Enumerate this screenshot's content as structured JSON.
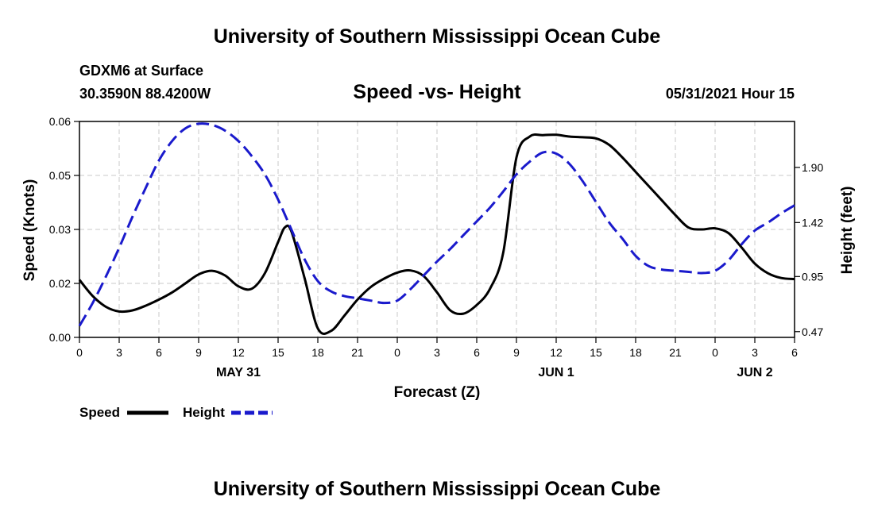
{
  "header": {
    "title": "University of Southern Mississippi Ocean Cube",
    "station": "GDXM6 at Surface",
    "coords": "30.3590N  88.4200W",
    "chart_title": "Speed -vs- Height",
    "datetime": "05/31/2021 Hour 15"
  },
  "footer": {
    "title": "University of Southern Mississippi Ocean Cube"
  },
  "legend": {
    "speed_label": "Speed",
    "height_label": "Height"
  },
  "colors": {
    "speed": "#000000",
    "height": "#1a1acc",
    "grid": "#c8c8c8"
  },
  "chart_data": {
    "type": "line",
    "title": "Speed -vs- Height",
    "xlabel": "Forecast (Z)",
    "ylabel_left": "Speed (Knots)",
    "ylabel_right": "Height (feet)",
    "x_unit": "hours since 2021-05-31 00Z",
    "xlim": [
      0,
      54
    ],
    "x_tick_values": [
      0,
      3,
      6,
      9,
      12,
      15,
      18,
      21,
      24,
      27,
      30,
      33,
      36,
      39,
      42,
      45,
      48,
      51,
      54
    ],
    "x_tick_labels": [
      "0",
      "3",
      "6",
      "9",
      "12",
      "15",
      "18",
      "21",
      "0",
      "3",
      "6",
      "9",
      "12",
      "15",
      "18",
      "21",
      "0",
      "3",
      "6"
    ],
    "date_labels": [
      {
        "x": 12,
        "label": "MAY 31"
      },
      {
        "x": 36,
        "label": "JUN 1"
      },
      {
        "x": 51,
        "label": "JUN 2"
      }
    ],
    "y_left": {
      "ylim": [
        0,
        0.06
      ],
      "ticks": [
        0.0,
        0.015,
        0.03,
        0.045,
        0.06
      ],
      "tick_labels": [
        "0.00",
        "0.02",
        "0.03",
        "0.05",
        "0.06"
      ]
    },
    "y_right": {
      "ylim": [
        0.42,
        2.3
      ],
      "ticks": [
        0.47,
        0.95,
        1.42,
        1.9
      ],
      "tick_labels": [
        "0.47",
        "0.95",
        "1.42",
        "1.90"
      ]
    },
    "grid": true,
    "series": [
      {
        "name": "Speed",
        "axis": "left",
        "style": "solid",
        "x": [
          0,
          1,
          2,
          3,
          4,
          5,
          6,
          7,
          8,
          9,
          10,
          11,
          12,
          13,
          14,
          15,
          15.5,
          16,
          17,
          18,
          19,
          20,
          21,
          22,
          23,
          24,
          25,
          26,
          27,
          28,
          29,
          30,
          31,
          32,
          33,
          34,
          35,
          36,
          37,
          38,
          39,
          40,
          41,
          42,
          43,
          44,
          45,
          46,
          47,
          48,
          49,
          50,
          51,
          52,
          53,
          54
        ],
        "values": [
          0.016,
          0.0115,
          0.0085,
          0.0072,
          0.0075,
          0.0088,
          0.0105,
          0.0125,
          0.015,
          0.0175,
          0.0185,
          0.0172,
          0.0142,
          0.0135,
          0.0178,
          0.0265,
          0.0305,
          0.0295,
          0.0165,
          0.0025,
          0.0018,
          0.006,
          0.0105,
          0.014,
          0.0163,
          0.018,
          0.0186,
          0.017,
          0.0125,
          0.0075,
          0.0066,
          0.009,
          0.0135,
          0.0235,
          0.05,
          0.0558,
          0.0562,
          0.0563,
          0.0558,
          0.0556,
          0.0553,
          0.0535,
          0.05,
          0.046,
          0.042,
          0.038,
          0.034,
          0.0305,
          0.03,
          0.0303,
          0.029,
          0.025,
          0.0205,
          0.0178,
          0.0165,
          0.0162
        ]
      },
      {
        "name": "Height",
        "axis": "right",
        "style": "dashed",
        "x": [
          0,
          1,
          2,
          3,
          4,
          5,
          6,
          7,
          8,
          9,
          10,
          11,
          12,
          13,
          14,
          15,
          16,
          17,
          18,
          19,
          20,
          21,
          22,
          23,
          24,
          25,
          26,
          27,
          28,
          29,
          30,
          31,
          32,
          33,
          34,
          35,
          36,
          37,
          38,
          39,
          40,
          41,
          42,
          43,
          44,
          45,
          46,
          47,
          48,
          49,
          50,
          51,
          52,
          53,
          54
        ],
        "values": [
          0.52,
          0.72,
          0.95,
          1.2,
          1.47,
          1.72,
          1.96,
          2.13,
          2.24,
          2.28,
          2.27,
          2.22,
          2.13,
          2.0,
          1.84,
          1.62,
          1.36,
          1.1,
          0.91,
          0.82,
          0.78,
          0.76,
          0.74,
          0.72,
          0.74,
          0.84,
          0.96,
          1.08,
          1.19,
          1.31,
          1.43,
          1.55,
          1.69,
          1.84,
          1.95,
          2.03,
          2.02,
          1.93,
          1.78,
          1.6,
          1.42,
          1.28,
          1.13,
          1.04,
          1.01,
          1.0,
          0.99,
          0.98,
          1.0,
          1.09,
          1.23,
          1.35,
          1.42,
          1.5,
          1.57
        ]
      }
    ]
  }
}
